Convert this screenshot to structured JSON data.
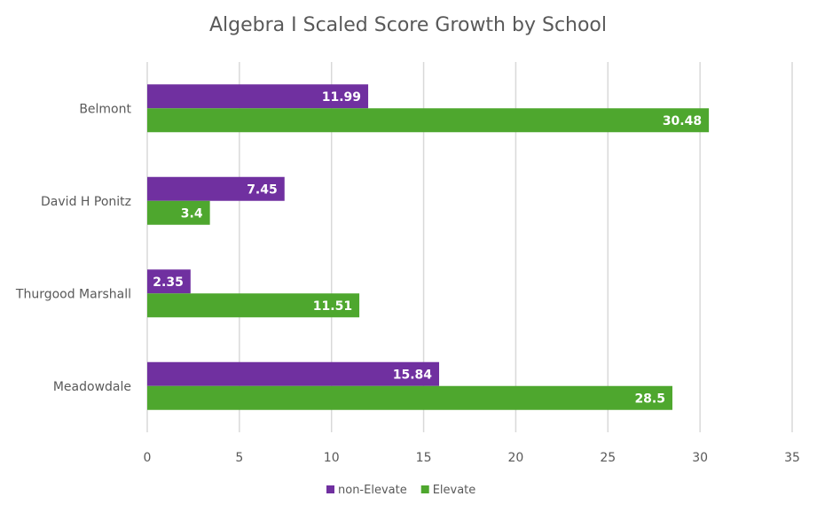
{
  "chart_data": {
    "type": "bar",
    "orientation": "horizontal",
    "title": "Algebra I Scaled Score Growth by School",
    "xlabel": "",
    "ylabel": "",
    "categories": [
      "Belmont",
      "David H Ponitz",
      "Thurgood Marshall",
      "Meadowdale"
    ],
    "series": [
      {
        "name": "non-Elevate",
        "color": "#7030A0",
        "values": [
          11.99,
          7.45,
          2.35,
          15.84
        ]
      },
      {
        "name": "Elevate",
        "color": "#4EA72E",
        "values": [
          30.48,
          3.4,
          11.51,
          28.5
        ]
      }
    ],
    "xlim": [
      0,
      35
    ],
    "xticks": [
      "0",
      "5",
      "10",
      "15",
      "20",
      "25",
      "30",
      "35"
    ],
    "grid": "vertical",
    "legend": "bottom",
    "data_labels": true
  }
}
